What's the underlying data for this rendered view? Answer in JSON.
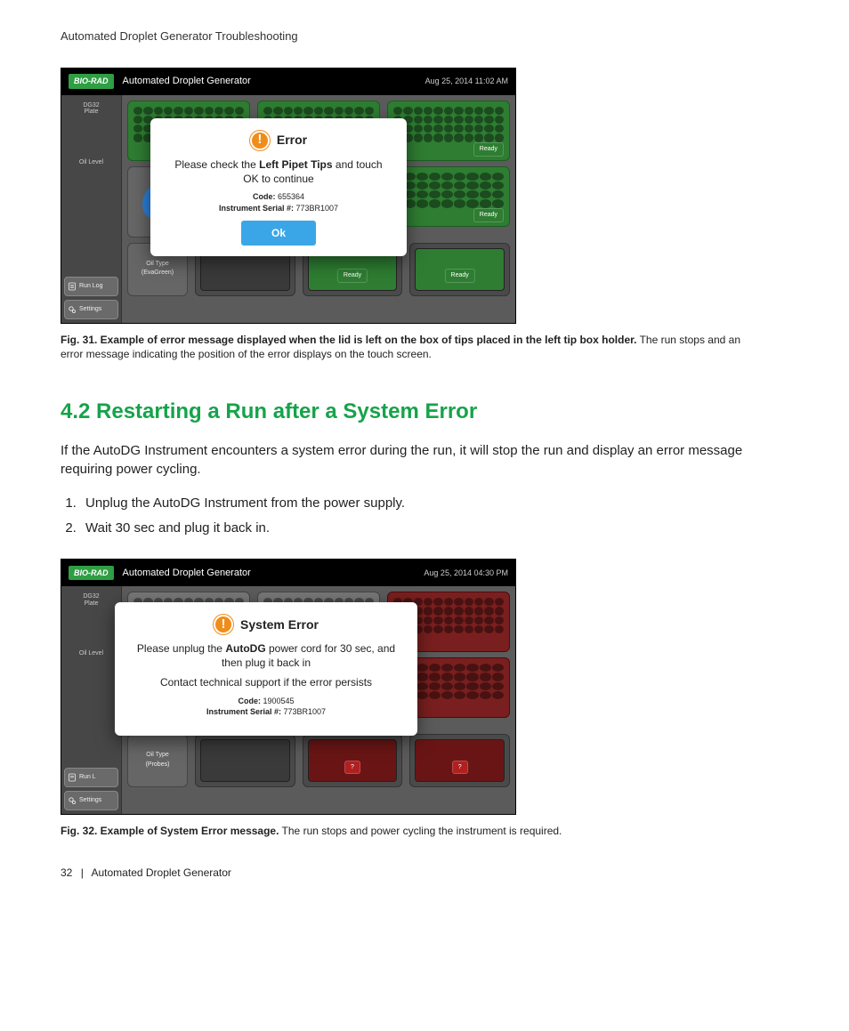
{
  "page": {
    "crumb": "Automated Droplet Generator Troubleshooting",
    "footer_page": "32",
    "footer_title": "Automated Droplet Generator"
  },
  "fig31": {
    "caption_bold": "Fig. 31. Example of error message displayed when the lid is left on the box of tips placed in the left tip box holder.",
    "caption_rest": " The run stops and an error message indicating the position of the error displays on the touch screen."
  },
  "fig32": {
    "caption_bold": "Fig. 32. Example of System Error message.",
    "caption_rest": " The run stops and power cycling the instrument is required."
  },
  "section": {
    "heading": "4.2 Restarting a Run after a System Error",
    "intro": "If the AutoDG Instrument encounters a system error during the run, it will stop the run and display an error message requiring power cycling.",
    "step1": "Unplug the AutoDG Instrument from the power supply.",
    "step2": "Wait 30 sec and plug it back in."
  },
  "ss_common": {
    "brand": "BIO-RAD",
    "title": "Automated Droplet Generator",
    "side_dg32": "DG32\nPlate",
    "side_oil": "Oil Level",
    "btn_runlog": "Run Log",
    "btn_settings": "Settings",
    "oiltype_label": "Oil Type",
    "badge_ready": "Ready",
    "badge_q": "?"
  },
  "ss1": {
    "timestamp": "Aug 25, 2014 11:02 AM",
    "oiltype_value": "(EvaGreen)",
    "modal": {
      "title": "Error",
      "msg_pre": "Please check the ",
      "msg_bold": "Left Pipet Tips",
      "msg_post": " and touch OK to continue",
      "code_label": "Code:",
      "code": "655364",
      "serial_label": "Instrument Serial #:",
      "serial": "773BR1007",
      "ok": "Ok"
    }
  },
  "ss2": {
    "timestamp": "Aug 25, 2014 04:30 PM",
    "oiltype_value": "(Probes)",
    "modal": {
      "title": "System Error",
      "line1_pre": "Please unplug the ",
      "line1_bold": "AutoDG",
      "line1_post": " power cord for 30 sec, and then plug it back in",
      "line2": "Contact technical support if the error persists",
      "code_label": "Code:",
      "code": "1900545",
      "serial_label": "Instrument Serial #:",
      "serial": "773BR1007"
    }
  },
  "colors": {
    "accent_green": "#16a34a",
    "modal_ok": "#3aa6e8",
    "warn_icon": "#f08c1a",
    "plate_green": "#2e7d32",
    "plate_red": "#7a1f1f"
  }
}
